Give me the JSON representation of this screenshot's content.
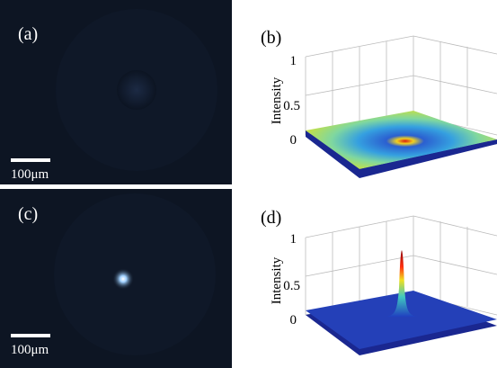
{
  "panels": [
    {
      "label": "(a)",
      "scale_bar": "100μm"
    },
    {
      "label": "(b)",
      "axis_label": "Intensity",
      "ticks": [
        "1",
        "0.5",
        "0"
      ]
    },
    {
      "label": "(c)",
      "scale_bar": "100μm"
    },
    {
      "label": "(d)",
      "axis_label": "Intensity",
      "ticks": [
        "1",
        "0.5",
        "0"
      ]
    }
  ]
}
